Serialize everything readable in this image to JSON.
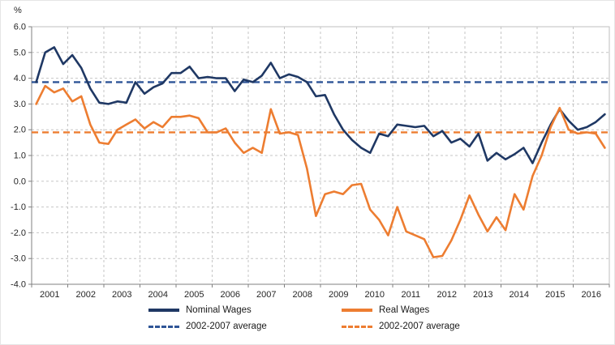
{
  "chart_data": {
    "type": "line",
    "title": "",
    "ylabel": "%",
    "xlabel": "",
    "ylim": [
      -4.0,
      6.0
    ],
    "y_ticks": [
      6.0,
      5.0,
      4.0,
      3.0,
      2.0,
      1.0,
      0.0,
      -1.0,
      -2.0,
      -3.0,
      -4.0
    ],
    "years": [
      "2001",
      "2002",
      "2003",
      "2004",
      "2005",
      "2006",
      "2007",
      "2008",
      "2009",
      "2010",
      "2011",
      "2012",
      "2013",
      "2014",
      "2015",
      "2016"
    ],
    "x_unit": "quarterly",
    "grid": "dashed",
    "legend_position": "bottom",
    "series": [
      {
        "name": "Nominal Wages",
        "color": "#1F3864",
        "values": [
          3.85,
          5.0,
          5.2,
          4.55,
          4.9,
          4.4,
          3.6,
          3.05,
          3.0,
          3.1,
          3.05,
          3.85,
          3.4,
          3.65,
          3.8,
          4.2,
          4.2,
          4.45,
          4.0,
          4.05,
          4.0,
          4.0,
          3.5,
          3.95,
          3.85,
          4.1,
          4.6,
          4.0,
          4.15,
          4.05,
          3.85,
          3.3,
          3.35,
          2.6,
          2.0,
          1.6,
          1.3,
          1.1,
          1.85,
          1.75,
          2.2,
          2.15,
          2.1,
          2.15,
          1.75,
          1.95,
          1.5,
          1.65,
          1.35,
          1.85,
          0.8,
          1.1,
          0.85,
          1.05,
          1.3,
          0.7,
          1.5,
          2.2,
          2.8,
          2.35,
          2.0,
          2.1,
          2.3,
          2.6
        ]
      },
      {
        "name": "Real Wages",
        "color": "#ED7D31",
        "values": [
          3.0,
          3.7,
          3.45,
          3.6,
          3.1,
          3.3,
          2.2,
          1.5,
          1.45,
          2.0,
          2.2,
          2.4,
          2.05,
          2.3,
          2.1,
          2.5,
          2.5,
          2.55,
          2.45,
          1.9,
          1.9,
          2.05,
          1.5,
          1.1,
          1.3,
          1.1,
          2.8,
          1.85,
          1.9,
          1.8,
          0.5,
          -1.35,
          -0.5,
          -0.4,
          -0.5,
          -0.15,
          -0.1,
          -1.1,
          -1.5,
          -2.1,
          -1.0,
          -1.95,
          -2.1,
          -2.25,
          -2.95,
          -2.9,
          -2.3,
          -1.5,
          -0.55,
          -1.3,
          -1.95,
          -1.4,
          -1.9,
          -0.5,
          -1.1,
          0.2,
          1.0,
          2.1,
          2.85,
          2.0,
          1.85,
          1.9,
          1.85,
          1.3
        ]
      }
    ],
    "average_lines": [
      {
        "name": "2002-2007 average",
        "color": "#2F5597",
        "value": 3.85
      },
      {
        "name": "2002-2007 average",
        "color": "#ED7D31",
        "value": 1.9
      }
    ]
  },
  "legend": {
    "items": [
      {
        "label": "Nominal Wages",
        "style": "solid",
        "color": "#1F3864"
      },
      {
        "label": "Real Wages",
        "style": "solid",
        "color": "#ED7D31"
      },
      {
        "label": "2002-2007 average",
        "style": "dashed",
        "color": "#2F5597"
      },
      {
        "label": "2002-2007 average",
        "style": "dashed",
        "color": "#ED7D31"
      }
    ]
  }
}
